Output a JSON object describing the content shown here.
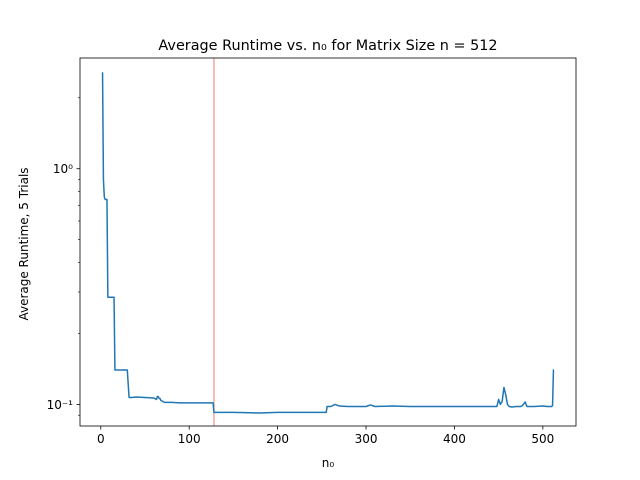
{
  "chart_data": {
    "type": "line",
    "title": "Average Runtime vs. n₀ for Matrix Size n = 512",
    "xlabel": "n₀",
    "ylabel": "Average Runtime, 5 Trials",
    "yscale": "log",
    "xlim": [
      -23.5,
      537.5
    ],
    "ylim": [
      0.081,
      2.95
    ],
    "x_ticks": [
      0,
      100,
      200,
      300,
      400,
      500
    ],
    "x_tick_labels": [
      "0",
      "100",
      "200",
      "300",
      "400",
      "500"
    ],
    "y_ticks": [
      0.1,
      1
    ],
    "y_tick_labels": [
      "10⁻¹",
      "10⁰"
    ],
    "grid": false,
    "vline": {
      "x": 128,
      "color": "#f4a6a6"
    },
    "series": [
      {
        "color": "#1f77b4",
        "x": [
          2,
          3,
          4,
          5,
          7,
          8,
          10,
          12,
          15,
          16,
          20,
          25,
          30,
          32,
          35,
          40,
          50,
          60,
          63,
          64,
          65,
          66,
          67,
          68,
          70,
          72,
          75,
          80,
          90,
          100,
          110,
          120,
          127,
          128,
          130,
          150,
          180,
          200,
          220,
          255,
          256,
          260,
          265,
          268,
          270,
          280,
          300,
          305,
          310,
          330,
          350,
          380,
          400,
          420,
          445,
          448,
          450,
          452,
          454,
          456,
          458,
          460,
          462,
          465,
          470,
          475,
          477,
          480,
          482,
          485,
          490,
          500,
          505,
          510,
          511,
          512
        ],
        "y": [
          2.55,
          0.9,
          0.76,
          0.74,
          0.74,
          0.285,
          0.285,
          0.285,
          0.285,
          0.14,
          0.14,
          0.14,
          0.14,
          0.107,
          0.107,
          0.1075,
          0.107,
          0.1065,
          0.105,
          0.108,
          0.108,
          0.106,
          0.106,
          0.104,
          0.103,
          0.102,
          0.102,
          0.102,
          0.1015,
          0.1015,
          0.1015,
          0.1015,
          0.1015,
          0.0925,
          0.0925,
          0.0925,
          0.092,
          0.0925,
          0.0925,
          0.0925,
          0.098,
          0.098,
          0.1,
          0.099,
          0.0985,
          0.098,
          0.098,
          0.0995,
          0.098,
          0.0985,
          0.098,
          0.098,
          0.098,
          0.098,
          0.098,
          0.098,
          0.105,
          0.1,
          0.103,
          0.118,
          0.11,
          0.1,
          0.098,
          0.0975,
          0.098,
          0.098,
          0.099,
          0.1025,
          0.098,
          0.098,
          0.098,
          0.0985,
          0.098,
          0.098,
          0.099,
          0.14
        ]
      }
    ]
  }
}
